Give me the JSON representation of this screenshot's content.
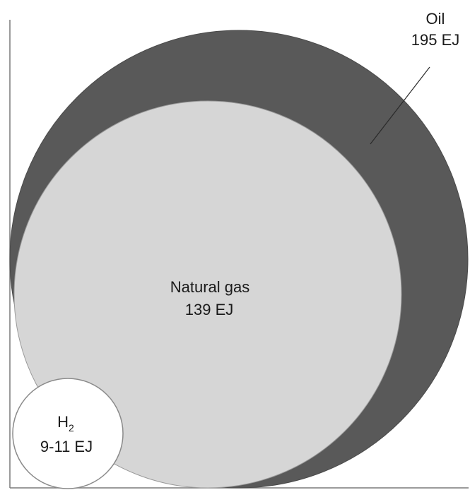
{
  "chart_data": {
    "type": "bubble",
    "title": "",
    "xlabel": "",
    "ylabel": "",
    "series": [
      {
        "name": "Oil",
        "name_sub": "",
        "value_label": "195 EJ",
        "value": 195,
        "color": "#595959"
      },
      {
        "name": "Natural gas",
        "name_sub": "",
        "value_label": "139 EJ",
        "value": 139,
        "color": "#d6d6d6"
      },
      {
        "name": "H",
        "name_sub": "2",
        "value_label": "9-11 EJ",
        "value": 10,
        "color": "#ffffff"
      }
    ],
    "arrangement": "nested, anchored bottom-left",
    "axes_color": "#7a7a7a"
  }
}
